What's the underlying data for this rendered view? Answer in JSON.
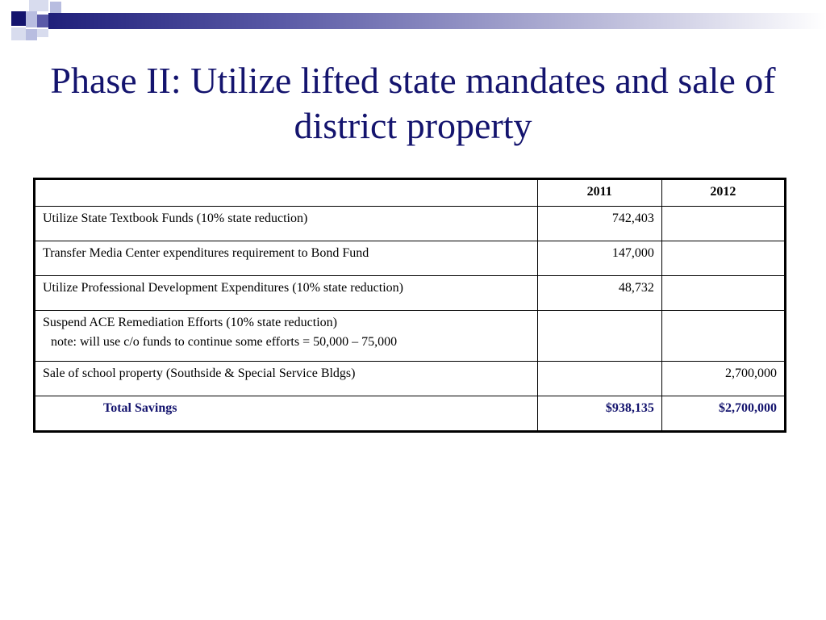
{
  "slide": {
    "title": "Phase II: Utilize lifted state mandates and sale of district property"
  },
  "table": {
    "headers": [
      "",
      "2011",
      "2012"
    ],
    "rows": [
      {
        "label": "Utilize State Textbook Funds (10% state reduction)",
        "y2011": "742,403",
        "y2012": ""
      },
      {
        "label": "Transfer Media Center expenditures requirement to Bond Fund",
        "y2011": "147,000",
        "y2012": ""
      },
      {
        "label": "Utilize Professional Development Expenditures (10% state reduction)",
        "y2011": "48,732",
        "y2012": ""
      },
      {
        "label": "Suspend ACE Remediation Efforts (10% state reduction)",
        "note": "note: will use c/o funds to continue some efforts = 50,000 – 75,000",
        "y2011": "",
        "y2012": ""
      },
      {
        "label": "Sale of school property (Southside & Special Service Bldgs)",
        "y2011": "",
        "y2012": "2,700,000"
      }
    ],
    "total": {
      "label": "Total Savings",
      "y2011": "$938,135",
      "y2012": "$2,700,000"
    }
  },
  "colors": {
    "title": "#14146e",
    "accent_dark": "#14146e",
    "accent_mid": "#5a5aa8",
    "accent_light": "#b8bde0"
  }
}
